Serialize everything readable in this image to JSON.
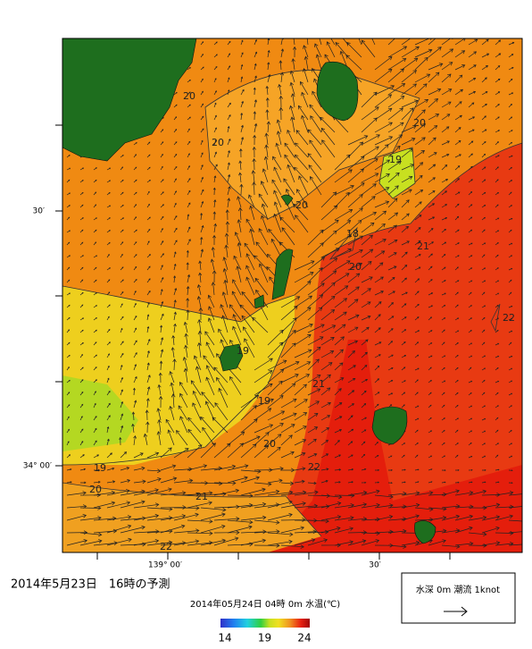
{
  "map": {
    "title": "2014年5月23日　16時の予測",
    "subtitle": "2014年05月24日 04時 0m 水温(℃)",
    "lat_labels": [
      "30′",
      "34° 00′"
    ],
    "lon_labels": [
      "139° 00′",
      "30′"
    ],
    "contour_labels": [
      "20",
      "20",
      "20",
      "19",
      "20",
      "18",
      "21",
      "20",
      "22",
      "19",
      "21",
      "19",
      "20",
      "19",
      "20",
      "22",
      "21",
      "22"
    ],
    "colorbar": {
      "range": [
        14,
        24
      ],
      "ticks": [
        14,
        19,
        24
      ]
    },
    "legend": "水深 0m 潮流 1knot"
  }
}
